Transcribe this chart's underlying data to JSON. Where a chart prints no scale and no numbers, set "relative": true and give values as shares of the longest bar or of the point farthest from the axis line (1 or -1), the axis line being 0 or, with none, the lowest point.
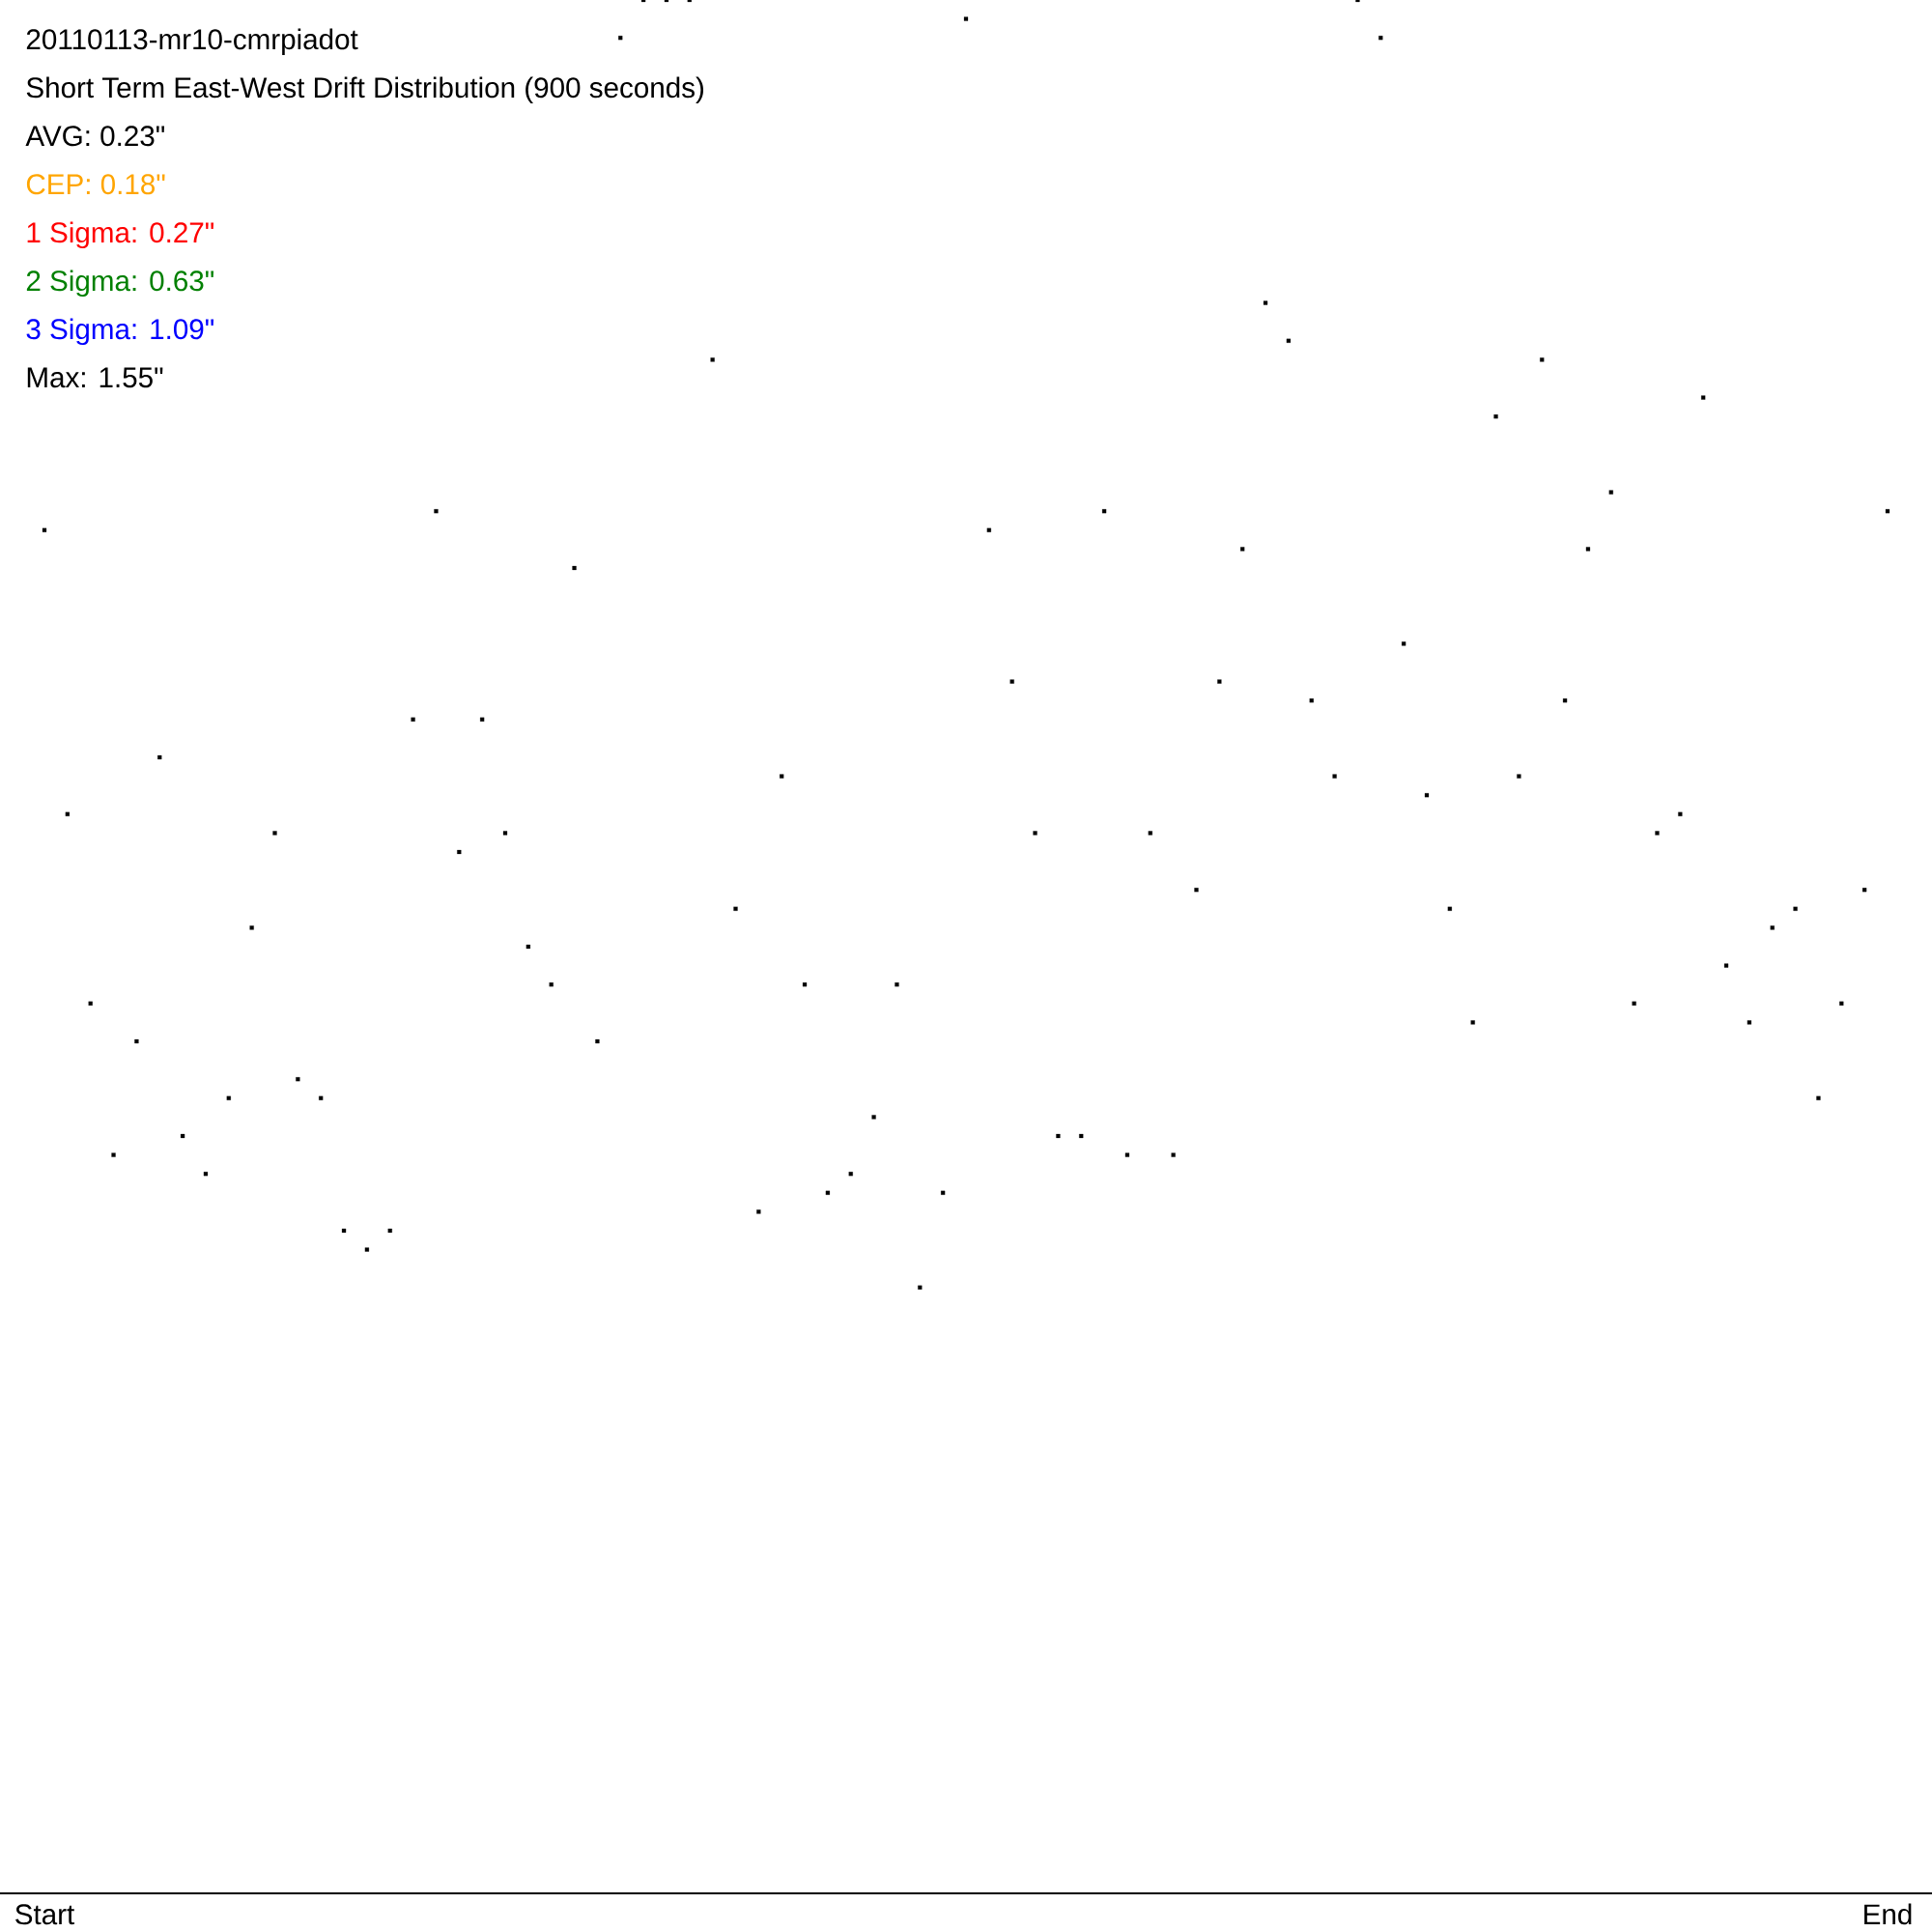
{
  "chart_data": {
    "type": "scatter",
    "title": "20110113-mr10-cmrpiadot",
    "subtitle": "Short Term East-West Drift Distribution (900 seconds)",
    "annotations": [
      "AVG: 0.23\"",
      "CEP: 0.18\"",
      "1 Sigma: 0.27\"",
      "2 Sigma: 0.63\"",
      "3 Sigma: 1.09\"",
      "Max: 1.55\""
    ],
    "relative": true,
    "marker": "square",
    "categories": [
      "Start",
      null,
      null,
      null,
      null,
      null,
      null,
      null,
      null,
      null,
      null,
      null,
      null,
      null,
      null,
      null,
      null,
      null,
      null,
      null,
      null,
      null,
      null,
      null,
      null,
      null,
      null,
      null,
      null,
      null,
      null,
      null,
      null,
      null,
      null,
      null,
      null,
      null,
      null,
      null,
      null,
      null,
      null,
      null,
      null,
      null,
      null,
      null,
      null,
      null,
      null,
      null,
      null,
      null,
      null,
      null,
      null,
      null,
      null,
      null,
      null,
      null,
      null,
      null,
      null,
      null,
      null,
      null,
      null,
      null,
      null,
      null,
      null,
      null,
      null,
      null,
      null,
      null,
      null,
      null,
      "End"
    ],
    "series": [
      {
        "color": "#000000",
        "values": [
          0.72,
          0.57,
          0.47,
          0.39,
          0.45,
          0.6,
          0.4,
          0.38,
          0.42,
          0.51,
          0.56,
          0.43,
          0.42,
          0.35,
          0.34,
          0.35,
          0.62,
          0.73,
          0.55,
          0.62,
          0.56,
          0.5,
          0.48,
          0.7,
          0.45,
          0.98,
          1.0,
          1.0,
          1.0,
          0.81,
          0.52,
          0.36,
          0.59,
          0.48,
          0.37,
          0.38,
          0.41,
          0.48,
          0.32,
          0.37,
          0.99,
          0.72,
          0.64,
          0.56,
          0.4,
          0.4,
          0.73,
          0.39,
          0.56,
          0.39,
          0.53,
          0.64,
          0.71,
          0.84,
          0.82,
          0.63,
          0.59,
          1.0,
          0.98,
          0.66,
          0.58,
          0.52,
          0.46,
          0.78,
          0.59,
          0.81,
          0.63,
          0.71,
          0.74,
          0.47,
          0.56,
          0.57,
          0.79,
          0.49,
          0.46,
          0.51,
          0.52,
          0.42,
          0.47,
          0.53,
          0.73
        ]
      }
    ]
  }
}
